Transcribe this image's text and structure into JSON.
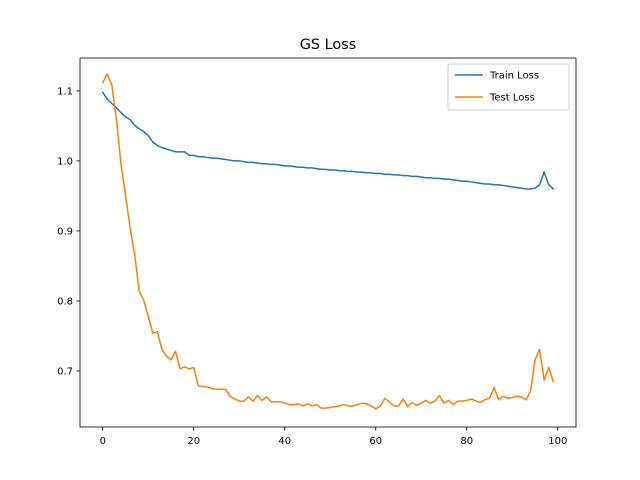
{
  "chart_data": {
    "type": "line",
    "title": "GS Loss",
    "xlabel": "",
    "ylabel": "",
    "xlim": [
      -5,
      104
    ],
    "ylim": [
      0.62,
      1.147
    ],
    "xticks": [
      0,
      20,
      40,
      60,
      80,
      100
    ],
    "xtick_labels": [
      "0",
      "20",
      "40",
      "60",
      "80",
      "100"
    ],
    "yticks": [
      0.7,
      0.8,
      0.9,
      1.0,
      1.1
    ],
    "ytick_labels": [
      "0.7",
      "0.8",
      "0.9",
      "1.0",
      "1.1"
    ],
    "grid": false,
    "legend_position": "top-right",
    "x": [
      0,
      1,
      2,
      3,
      4,
      5,
      6,
      7,
      8,
      9,
      10,
      11,
      12,
      13,
      14,
      15,
      16,
      17,
      18,
      19,
      20,
      21,
      22,
      23,
      24,
      25,
      26,
      27,
      28,
      29,
      30,
      31,
      32,
      33,
      34,
      35,
      36,
      37,
      38,
      39,
      40,
      41,
      42,
      43,
      44,
      45,
      46,
      47,
      48,
      49,
      50,
      51,
      52,
      53,
      54,
      55,
      56,
      57,
      58,
      59,
      60,
      61,
      62,
      63,
      64,
      65,
      66,
      67,
      68,
      69,
      70,
      71,
      72,
      73,
      74,
      75,
      76,
      77,
      78,
      79,
      80,
      81,
      82,
      83,
      84,
      85,
      86,
      87,
      88,
      89,
      90,
      91,
      92,
      93,
      94,
      95,
      96,
      97,
      98,
      99
    ],
    "series": [
      {
        "name": "Train Loss",
        "color": "#1f77b4",
        "values": [
          1.098,
          1.088,
          1.082,
          1.076,
          1.069,
          1.063,
          1.059,
          1.051,
          1.046,
          1.042,
          1.036,
          1.027,
          1.022,
          1.019,
          1.017,
          1.015,
          1.013,
          1.013,
          1.013,
          1.008,
          1.008,
          1.006,
          1.006,
          1.005,
          1.004,
          1.004,
          1.003,
          1.002,
          1.001,
          1.0,
          1.0,
          0.999,
          0.998,
          0.998,
          0.997,
          0.996,
          0.996,
          0.995,
          0.995,
          0.994,
          0.993,
          0.993,
          0.992,
          0.991,
          0.991,
          0.99,
          0.99,
          0.989,
          0.988,
          0.988,
          0.987,
          0.987,
          0.986,
          0.986,
          0.985,
          0.985,
          0.984,
          0.984,
          0.983,
          0.983,
          0.982,
          0.982,
          0.981,
          0.981,
          0.98,
          0.98,
          0.979,
          0.979,
          0.978,
          0.978,
          0.977,
          0.976,
          0.976,
          0.975,
          0.975,
          0.974,
          0.974,
          0.973,
          0.972,
          0.971,
          0.971,
          0.97,
          0.969,
          0.968,
          0.967,
          0.967,
          0.966,
          0.966,
          0.965,
          0.964,
          0.963,
          0.962,
          0.961,
          0.96,
          0.96,
          0.961,
          0.966,
          0.984,
          0.966,
          0.96
        ]
      },
      {
        "name": "Test Loss",
        "color": "#ff7f0e",
        "values": [
          1.112,
          1.124,
          1.108,
          1.06,
          0.996,
          0.951,
          0.905,
          0.867,
          0.814,
          0.801,
          0.778,
          0.754,
          0.756,
          0.731,
          0.721,
          0.716,
          0.728,
          0.703,
          0.706,
          0.703,
          0.705,
          0.679,
          0.678,
          0.677,
          0.675,
          0.674,
          0.674,
          0.674,
          0.664,
          0.66,
          0.657,
          0.657,
          0.663,
          0.657,
          0.665,
          0.658,
          0.663,
          0.656,
          0.656,
          0.656,
          0.654,
          0.652,
          0.652,
          0.653,
          0.65,
          0.653,
          0.65,
          0.652,
          0.647,
          0.647,
          0.648,
          0.649,
          0.65,
          0.652,
          0.65,
          0.65,
          0.652,
          0.654,
          0.653,
          0.65,
          0.646,
          0.65,
          0.661,
          0.656,
          0.65,
          0.65,
          0.66,
          0.649,
          0.655,
          0.651,
          0.654,
          0.658,
          0.654,
          0.657,
          0.665,
          0.654,
          0.658,
          0.652,
          0.657,
          0.657,
          0.658,
          0.66,
          0.657,
          0.655,
          0.659,
          0.661,
          0.676,
          0.659,
          0.664,
          0.661,
          0.662,
          0.664,
          0.663,
          0.659,
          0.671,
          0.716,
          0.731,
          0.687,
          0.705,
          0.685
        ]
      }
    ]
  }
}
